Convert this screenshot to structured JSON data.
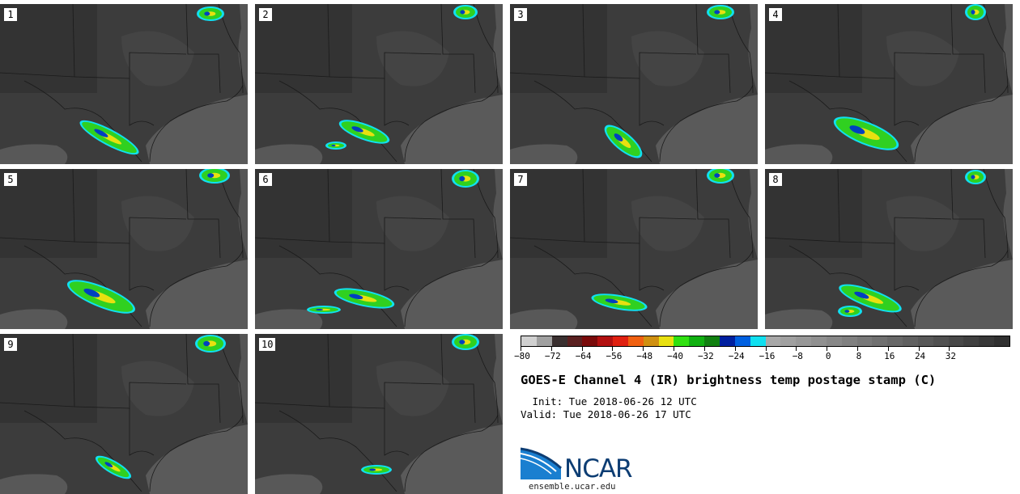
{
  "panels": [
    {
      "label": "1"
    },
    {
      "label": "2"
    },
    {
      "label": "3"
    },
    {
      "label": "4"
    },
    {
      "label": "5"
    },
    {
      "label": "6"
    },
    {
      "label": "7"
    },
    {
      "label": "8"
    },
    {
      "label": "9"
    },
    {
      "label": "10"
    }
  ],
  "colorbar": {
    "colors": [
      "#d0d0d0",
      "#a0a0a0",
      "#3a3030",
      "#5a2020",
      "#7a0a0a",
      "#b21010",
      "#e02010",
      "#f06010",
      "#d09010",
      "#e8e010",
      "#30e010",
      "#10b010",
      "#108010",
      "#0020a0",
      "#0060e0",
      "#10e0f0",
      "#a8a8a8",
      "#a0a0a0",
      "#989898",
      "#909090",
      "#888888",
      "#808080",
      "#787878",
      "#707070",
      "#686868",
      "#606060",
      "#585858",
      "#505050",
      "#484848",
      "#404040",
      "#383838",
      "#303030"
    ],
    "tick_labels": [
      "−80",
      "−72",
      "−64",
      "−56",
      "−48",
      "−40",
      "−32",
      "−24",
      "−16",
      "−8",
      "0",
      "8",
      "16",
      "24",
      "32"
    ]
  },
  "title": "GOES-E Channel 4 (IR) brightness temp postage stamp (C)",
  "init": " Init: Tue 2018-06-26 12 UTC",
  "valid": "Valid: Tue 2018-06-26 17 UTC",
  "logo": {
    "text": "NCAR",
    "url": "ensemble.ucar.edu"
  },
  "colors": {
    "accent": "#0d3d73",
    "cold": "#10e0f0",
    "storm": "#30e010"
  }
}
